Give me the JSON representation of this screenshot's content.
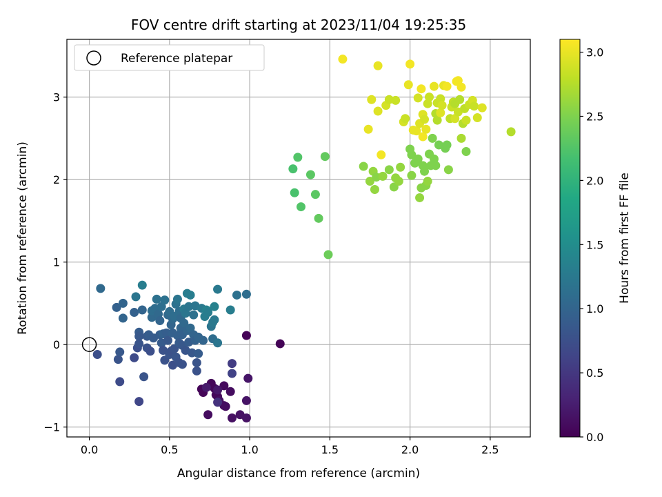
{
  "chart_data": {
    "type": "scatter",
    "title": "FOV centre drift starting at 2023/11/04 19:25:35",
    "xlabel": "Angular distance from reference (arcmin)",
    "ylabel": "Rotation from reference (arcmin)",
    "xlim": [
      -0.14,
      2.75
    ],
    "ylim": [
      -1.12,
      3.7
    ],
    "xticks": [
      0.0,
      0.5,
      1.0,
      1.5,
      2.0,
      2.5
    ],
    "xtick_labels": [
      "0.0",
      "0.5",
      "1.0",
      "1.5",
      "2.0",
      "2.5"
    ],
    "yticks": [
      -1,
      0,
      1,
      2,
      3
    ],
    "ytick_labels": [
      "−1",
      "0",
      "1",
      "2",
      "3"
    ],
    "grid": true,
    "legend": {
      "placement": "top-left",
      "entries": [
        "Reference platepar"
      ]
    },
    "reference_point": {
      "x": 0.0,
      "y": 0.0
    },
    "colorbar": {
      "label": "Hours from first FF file",
      "range": [
        0.0,
        3.1
      ],
      "ticks": [
        0.0,
        0.5,
        1.0,
        1.5,
        2.0,
        2.5,
        3.0
      ],
      "tick_labels": [
        "0.0",
        "0.5",
        "1.0",
        "1.5",
        "2.0",
        "2.5",
        "3.0"
      ],
      "colormap": "viridis"
    },
    "points": [
      {
        "x": 0.98,
        "y": 0.11,
        "t": 0.02
      },
      {
        "x": 1.19,
        "y": 0.01,
        "t": 0.02
      },
      {
        "x": 0.7,
        "y": -0.54,
        "t": 0.03
      },
      {
        "x": 0.71,
        "y": -0.58,
        "t": 0.04
      },
      {
        "x": 0.76,
        "y": -0.47,
        "t": 0.05
      },
      {
        "x": 0.78,
        "y": -0.53,
        "t": 0.06
      },
      {
        "x": 0.79,
        "y": -0.61,
        "t": 0.07
      },
      {
        "x": 0.8,
        "y": -0.63,
        "t": 0.06
      },
      {
        "x": 0.84,
        "y": -0.5,
        "t": 0.08
      },
      {
        "x": 0.84,
        "y": -0.74,
        "t": 0.09
      },
      {
        "x": 0.88,
        "y": -0.57,
        "t": 0.1
      },
      {
        "x": 0.74,
        "y": -0.85,
        "t": 0.1
      },
      {
        "x": 0.81,
        "y": -0.68,
        "t": 0.12
      },
      {
        "x": 0.85,
        "y": -0.75,
        "t": 0.11
      },
      {
        "x": 0.89,
        "y": -0.89,
        "t": 0.13
      },
      {
        "x": 0.94,
        "y": -0.85,
        "t": 0.14
      },
      {
        "x": 0.98,
        "y": -0.89,
        "t": 0.15
      },
      {
        "x": 0.98,
        "y": -0.68,
        "t": 0.16
      },
      {
        "x": 0.99,
        "y": -0.41,
        "t": 0.18
      },
      {
        "x": 0.8,
        "y": -0.55,
        "t": 0.2
      },
      {
        "x": 0.73,
        "y": -0.52,
        "t": 0.22
      },
      {
        "x": 0.89,
        "y": -0.23,
        "t": 0.55
      },
      {
        "x": 0.89,
        "y": -0.35,
        "t": 0.6
      },
      {
        "x": 0.8,
        "y": -0.7,
        "t": 0.45
      },
      {
        "x": 0.05,
        "y": -0.12,
        "t": 0.75
      },
      {
        "x": 0.07,
        "y": 0.68,
        "t": 1.05
      },
      {
        "x": 0.17,
        "y": 0.45,
        "t": 0.95
      },
      {
        "x": 0.18,
        "y": -0.18,
        "t": 0.8
      },
      {
        "x": 0.19,
        "y": -0.09,
        "t": 0.85
      },
      {
        "x": 0.19,
        "y": -0.45,
        "t": 0.7
      },
      {
        "x": 0.21,
        "y": 0.5,
        "t": 1.0
      },
      {
        "x": 0.21,
        "y": 0.32,
        "t": 1.0
      },
      {
        "x": 0.28,
        "y": -0.16,
        "t": 0.7
      },
      {
        "x": 0.28,
        "y": 0.39,
        "t": 0.95
      },
      {
        "x": 0.29,
        "y": 0.58,
        "t": 1.2
      },
      {
        "x": 0.3,
        "y": -0.04,
        "t": 0.75
      },
      {
        "x": 0.31,
        "y": 0.15,
        "t": 0.9
      },
      {
        "x": 0.31,
        "y": 0.1,
        "t": 0.85
      },
      {
        "x": 0.31,
        "y": 0.01,
        "t": 0.8
      },
      {
        "x": 0.31,
        "y": -0.69,
        "t": 0.65
      },
      {
        "x": 0.33,
        "y": 0.72,
        "t": 1.3
      },
      {
        "x": 0.33,
        "y": 0.42,
        "t": 1.0
      },
      {
        "x": 0.34,
        "y": -0.39,
        "t": 0.8
      },
      {
        "x": 0.36,
        "y": -0.04,
        "t": 0.78
      },
      {
        "x": 0.36,
        "y": 0.1,
        "t": 0.85
      },
      {
        "x": 0.37,
        "y": 0.12,
        "t": 0.9
      },
      {
        "x": 0.38,
        "y": -0.08,
        "t": 0.75
      },
      {
        "x": 0.39,
        "y": 0.33,
        "t": 1.05
      },
      {
        "x": 0.39,
        "y": 0.41,
        "t": 1.1
      },
      {
        "x": 0.4,
        "y": 0.08,
        "t": 0.88
      },
      {
        "x": 0.41,
        "y": 0.44,
        "t": 1.1
      },
      {
        "x": 0.42,
        "y": 0.55,
        "t": 1.15
      },
      {
        "x": 0.43,
        "y": 0.37,
        "t": 1.05
      },
      {
        "x": 0.44,
        "y": 0.12,
        "t": 0.9
      },
      {
        "x": 0.44,
        "y": 0.29,
        "t": 1.0
      },
      {
        "x": 0.45,
        "y": 0.02,
        "t": 0.88
      },
      {
        "x": 0.45,
        "y": 0.46,
        "t": 1.12
      },
      {
        "x": 0.46,
        "y": -0.07,
        "t": 0.78
      },
      {
        "x": 0.46,
        "y": 0.13,
        "t": 0.95
      },
      {
        "x": 0.47,
        "y": 0.54,
        "t": 1.15
      },
      {
        "x": 0.47,
        "y": -0.19,
        "t": 0.78
      },
      {
        "x": 0.48,
        "y": 0.14,
        "t": 0.92
      },
      {
        "x": 0.49,
        "y": 0.05,
        "t": 0.85
      },
      {
        "x": 0.49,
        "y": 0.36,
        "t": 1.05
      },
      {
        "x": 0.5,
        "y": -0.12,
        "t": 0.8
      },
      {
        "x": 0.5,
        "y": 0.4,
        "t": 1.1
      },
      {
        "x": 0.51,
        "y": -0.08,
        "t": 0.78
      },
      {
        "x": 0.51,
        "y": 0.24,
        "t": 1.0
      },
      {
        "x": 0.52,
        "y": 0.31,
        "t": 1.05
      },
      {
        "x": 0.52,
        "y": -0.25,
        "t": 0.75
      },
      {
        "x": 0.52,
        "y": 0.14,
        "t": 0.95
      },
      {
        "x": 0.53,
        "y": -0.05,
        "t": 0.8
      },
      {
        "x": 0.53,
        "y": 0.34,
        "t": 1.1
      },
      {
        "x": 0.54,
        "y": 0.49,
        "t": 1.15
      },
      {
        "x": 0.54,
        "y": -0.15,
        "t": 0.82
      },
      {
        "x": 0.55,
        "y": 0.11,
        "t": 0.95
      },
      {
        "x": 0.55,
        "y": 0.55,
        "t": 1.2
      },
      {
        "x": 0.56,
        "y": 0.02,
        "t": 0.88
      },
      {
        "x": 0.56,
        "y": 0.4,
        "t": 1.1
      },
      {
        "x": 0.56,
        "y": -0.22,
        "t": 0.78
      },
      {
        "x": 0.57,
        "y": 0.2,
        "t": 1.0
      },
      {
        "x": 0.57,
        "y": 0.32,
        "t": 1.05
      },
      {
        "x": 0.58,
        "y": -0.01,
        "t": 0.85
      },
      {
        "x": 0.58,
        "y": 0.12,
        "t": 0.95
      },
      {
        "x": 0.58,
        "y": -0.24,
        "t": 0.78
      },
      {
        "x": 0.59,
        "y": 0.43,
        "t": 1.25
      },
      {
        "x": 0.59,
        "y": 0.26,
        "t": 1.05
      },
      {
        "x": 0.6,
        "y": 0.38,
        "t": 1.2
      },
      {
        "x": 0.6,
        "y": -0.07,
        "t": 0.82
      },
      {
        "x": 0.61,
        "y": 0.62,
        "t": 1.3
      },
      {
        "x": 0.61,
        "y": 0.17,
        "t": 1.0
      },
      {
        "x": 0.62,
        "y": 0.03,
        "t": 0.9
      },
      {
        "x": 0.62,
        "y": 0.46,
        "t": 1.2
      },
      {
        "x": 0.63,
        "y": 0.6,
        "t": 1.3
      },
      {
        "x": 0.63,
        "y": 0.2,
        "t": 1.05
      },
      {
        "x": 0.64,
        "y": -0.1,
        "t": 0.85
      },
      {
        "x": 0.65,
        "y": 0.36,
        "t": 1.15
      },
      {
        "x": 0.65,
        "y": 0.12,
        "t": 1.0
      },
      {
        "x": 0.66,
        "y": 0.47,
        "t": 1.2
      },
      {
        "x": 0.66,
        "y": 0.05,
        "t": 0.95
      },
      {
        "x": 0.67,
        "y": -0.22,
        "t": 0.8
      },
      {
        "x": 0.67,
        "y": -0.32,
        "t": 0.78
      },
      {
        "x": 0.68,
        "y": 0.09,
        "t": 1.0
      },
      {
        "x": 0.68,
        "y": -0.11,
        "t": 0.9
      },
      {
        "x": 0.7,
        "y": 0.44,
        "t": 1.25
      },
      {
        "x": 0.71,
        "y": 0.05,
        "t": 1.0
      },
      {
        "x": 0.72,
        "y": 0.34,
        "t": 1.3
      },
      {
        "x": 0.73,
        "y": 0.42,
        "t": 1.35
      },
      {
        "x": 0.74,
        "y": 0.39,
        "t": 1.3
      },
      {
        "x": 0.76,
        "y": 0.22,
        "t": 1.2
      },
      {
        "x": 0.77,
        "y": 0.27,
        "t": 1.25
      },
      {
        "x": 0.77,
        "y": 0.07,
        "t": 1.1
      },
      {
        "x": 0.78,
        "y": 0.46,
        "t": 1.35
      },
      {
        "x": 0.78,
        "y": 0.3,
        "t": 1.25
      },
      {
        "x": 0.8,
        "y": 0.02,
        "t": 1.2
      },
      {
        "x": 0.8,
        "y": 0.67,
        "t": 1.25
      },
      {
        "x": 0.88,
        "y": 0.42,
        "t": 1.3
      },
      {
        "x": 0.92,
        "y": 0.6,
        "t": 1.15
      },
      {
        "x": 0.98,
        "y": 0.61,
        "t": 1.1
      },
      {
        "x": 1.27,
        "y": 2.13,
        "t": 2.2
      },
      {
        "x": 1.28,
        "y": 1.84,
        "t": 2.2
      },
      {
        "x": 1.3,
        "y": 2.27,
        "t": 2.25
      },
      {
        "x": 1.32,
        "y": 1.67,
        "t": 2.25
      },
      {
        "x": 1.38,
        "y": 2.06,
        "t": 2.3
      },
      {
        "x": 1.41,
        "y": 1.82,
        "t": 2.3
      },
      {
        "x": 1.43,
        "y": 1.53,
        "t": 2.35
      },
      {
        "x": 1.47,
        "y": 2.28,
        "t": 2.35
      },
      {
        "x": 1.49,
        "y": 1.09,
        "t": 2.4
      },
      {
        "x": 1.58,
        "y": 3.46,
        "t": 3.05
      },
      {
        "x": 1.71,
        "y": 2.16,
        "t": 2.55
      },
      {
        "x": 1.74,
        "y": 2.61,
        "t": 3.0
      },
      {
        "x": 1.75,
        "y": 1.98,
        "t": 2.6
      },
      {
        "x": 1.76,
        "y": 2.97,
        "t": 2.95
      },
      {
        "x": 1.77,
        "y": 2.1,
        "t": 2.6
      },
      {
        "x": 1.78,
        "y": 1.88,
        "t": 2.6
      },
      {
        "x": 1.79,
        "y": 2.03,
        "t": 2.55
      },
      {
        "x": 1.8,
        "y": 3.38,
        "t": 3.0
      },
      {
        "x": 1.8,
        "y": 2.83,
        "t": 2.95
      },
      {
        "x": 1.82,
        "y": 2.3,
        "t": 3.05
      },
      {
        "x": 1.83,
        "y": 2.04,
        "t": 2.6
      },
      {
        "x": 1.85,
        "y": 2.9,
        "t": 2.9
      },
      {
        "x": 1.87,
        "y": 2.97,
        "t": 2.85
      },
      {
        "x": 1.87,
        "y": 2.12,
        "t": 2.55
      },
      {
        "x": 1.9,
        "y": 1.91,
        "t": 2.55
      },
      {
        "x": 1.91,
        "y": 2.96,
        "t": 2.85
      },
      {
        "x": 1.91,
        "y": 2.02,
        "t": 2.6
      },
      {
        "x": 1.93,
        "y": 1.98,
        "t": 2.6
      },
      {
        "x": 1.94,
        "y": 2.15,
        "t": 2.6
      },
      {
        "x": 1.96,
        "y": 2.7,
        "t": 2.9
      },
      {
        "x": 1.97,
        "y": 2.74,
        "t": 2.85
      },
      {
        "x": 1.99,
        "y": 3.15,
        "t": 3.0
      },
      {
        "x": 2.0,
        "y": 3.4,
        "t": 3.05
      },
      {
        "x": 2.0,
        "y": 2.37,
        "t": 2.5
      },
      {
        "x": 2.01,
        "y": 2.3,
        "t": 2.5
      },
      {
        "x": 2.01,
        "y": 2.05,
        "t": 2.55
      },
      {
        "x": 2.02,
        "y": 2.6,
        "t": 3.0
      },
      {
        "x": 2.03,
        "y": 2.2,
        "t": 2.5
      },
      {
        "x": 2.04,
        "y": 2.59,
        "t": 3.0
      },
      {
        "x": 2.05,
        "y": 2.99,
        "t": 2.9
      },
      {
        "x": 2.05,
        "y": 2.25,
        "t": 2.5
      },
      {
        "x": 2.06,
        "y": 1.78,
        "t": 2.6
      },
      {
        "x": 2.06,
        "y": 2.68,
        "t": 2.95
      },
      {
        "x": 2.07,
        "y": 3.1,
        "t": 3.05
      },
      {
        "x": 2.07,
        "y": 1.9,
        "t": 2.55
      },
      {
        "x": 2.08,
        "y": 2.79,
        "t": 2.95
      },
      {
        "x": 2.08,
        "y": 2.52,
        "t": 3.05
      },
      {
        "x": 2.08,
        "y": 2.17,
        "t": 2.5
      },
      {
        "x": 2.09,
        "y": 2.1,
        "t": 2.5
      },
      {
        "x": 2.09,
        "y": 2.73,
        "t": 2.9
      },
      {
        "x": 2.1,
        "y": 2.61,
        "t": 3.0
      },
      {
        "x": 2.1,
        "y": 1.93,
        "t": 2.55
      },
      {
        "x": 2.11,
        "y": 2.92,
        "t": 2.85
      },
      {
        "x": 2.11,
        "y": 1.98,
        "t": 2.6
      },
      {
        "x": 2.12,
        "y": 2.31,
        "t": 2.5
      },
      {
        "x": 2.12,
        "y": 3.0,
        "t": 2.85
      },
      {
        "x": 2.13,
        "y": 2.17,
        "t": 2.5
      },
      {
        "x": 2.14,
        "y": 2.5,
        "t": 2.5
      },
      {
        "x": 2.15,
        "y": 3.13,
        "t": 3.0
      },
      {
        "x": 2.15,
        "y": 2.25,
        "t": 2.5
      },
      {
        "x": 2.16,
        "y": 2.8,
        "t": 2.75
      },
      {
        "x": 2.16,
        "y": 2.17,
        "t": 2.5
      },
      {
        "x": 2.17,
        "y": 2.93,
        "t": 2.85
      },
      {
        "x": 2.17,
        "y": 2.72,
        "t": 2.75
      },
      {
        "x": 2.18,
        "y": 2.42,
        "t": 2.45
      },
      {
        "x": 2.19,
        "y": 2.81,
        "t": 2.95
      },
      {
        "x": 2.19,
        "y": 2.98,
        "t": 2.85
      },
      {
        "x": 2.2,
        "y": 2.9,
        "t": 2.9
      },
      {
        "x": 2.21,
        "y": 3.14,
        "t": 3.0
      },
      {
        "x": 2.22,
        "y": 2.38,
        "t": 2.45
      },
      {
        "x": 2.23,
        "y": 2.42,
        "t": 2.45
      },
      {
        "x": 2.23,
        "y": 3.13,
        "t": 3.05
      },
      {
        "x": 2.24,
        "y": 2.12,
        "t": 2.55
      },
      {
        "x": 2.25,
        "y": 2.74,
        "t": 2.8
      },
      {
        "x": 2.26,
        "y": 2.88,
        "t": 2.85
      },
      {
        "x": 2.27,
        "y": 2.94,
        "t": 2.8
      },
      {
        "x": 2.28,
        "y": 2.74,
        "t": 2.9
      },
      {
        "x": 2.28,
        "y": 2.92,
        "t": 2.75
      },
      {
        "x": 2.29,
        "y": 3.19,
        "t": 3.05
      },
      {
        "x": 2.3,
        "y": 2.82,
        "t": 2.85
      },
      {
        "x": 2.3,
        "y": 3.2,
        "t": 3.05
      },
      {
        "x": 2.31,
        "y": 2.97,
        "t": 2.75
      },
      {
        "x": 2.32,
        "y": 2.5,
        "t": 2.7
      },
      {
        "x": 2.32,
        "y": 3.12,
        "t": 3.05
      },
      {
        "x": 2.33,
        "y": 2.68,
        "t": 2.75
      },
      {
        "x": 2.34,
        "y": 2.86,
        "t": 2.8
      },
      {
        "x": 2.35,
        "y": 2.34,
        "t": 2.5
      },
      {
        "x": 2.35,
        "y": 2.72,
        "t": 2.85
      },
      {
        "x": 2.37,
        "y": 2.91,
        "t": 2.85
      },
      {
        "x": 2.39,
        "y": 2.96,
        "t": 2.9
      },
      {
        "x": 2.4,
        "y": 2.89,
        "t": 2.85
      },
      {
        "x": 2.42,
        "y": 2.75,
        "t": 2.9
      },
      {
        "x": 2.45,
        "y": 2.87,
        "t": 2.95
      },
      {
        "x": 2.63,
        "y": 2.58,
        "t": 2.75
      }
    ]
  }
}
